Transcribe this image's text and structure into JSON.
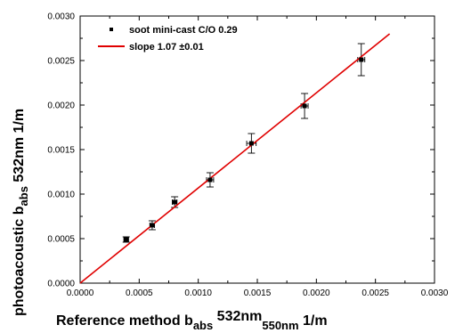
{
  "chart_data": {
    "type": "scatter",
    "xlabel": {
      "main": "Reference method b",
      "sub": "abs",
      "mid": " 532nm",
      "sub2": "550nm",
      "end": " 1/m"
    },
    "ylabel": {
      "main": "photoacoustic b",
      "sub": "abs",
      "end": " 532nm 1/m"
    },
    "xlim": [
      0,
      0.003
    ],
    "ylim": [
      0,
      0.003
    ],
    "x_ticks": [
      "0.0000",
      "0.0005",
      "0.0010",
      "0.0015",
      "0.0020",
      "0.0025",
      "0.0030"
    ],
    "y_ticks": [
      "0.0000",
      "0.0005",
      "0.0010",
      "0.0015",
      "0.0020",
      "0.0025",
      "0.0030"
    ],
    "grid": false,
    "legend_position": "top-left",
    "series": [
      {
        "name": "soot mini-cast C/O 0.29",
        "kind": "points",
        "marker": "square",
        "color": "#000000",
        "x": [
          0.00039,
          0.00061,
          0.0008,
          0.0011,
          0.00145,
          0.0019,
          0.00238
        ],
        "y": [
          0.00049,
          0.00065,
          0.00091,
          0.00116,
          0.00157,
          0.00199,
          0.00251
        ],
        "xerr": [
          2e-05,
          2e-05,
          2e-05,
          3e-05,
          4e-05,
          3e-05,
          3e-05
        ],
        "yerr": [
          3e-05,
          5e-05,
          6e-05,
          8e-05,
          0.00011,
          0.00014,
          0.00018
        ]
      },
      {
        "name": "slope 1.07 ±0.01",
        "kind": "line",
        "color": "#e00000",
        "x": [
          0,
          0.00262
        ],
        "y": [
          0,
          0.0028
        ]
      }
    ]
  }
}
